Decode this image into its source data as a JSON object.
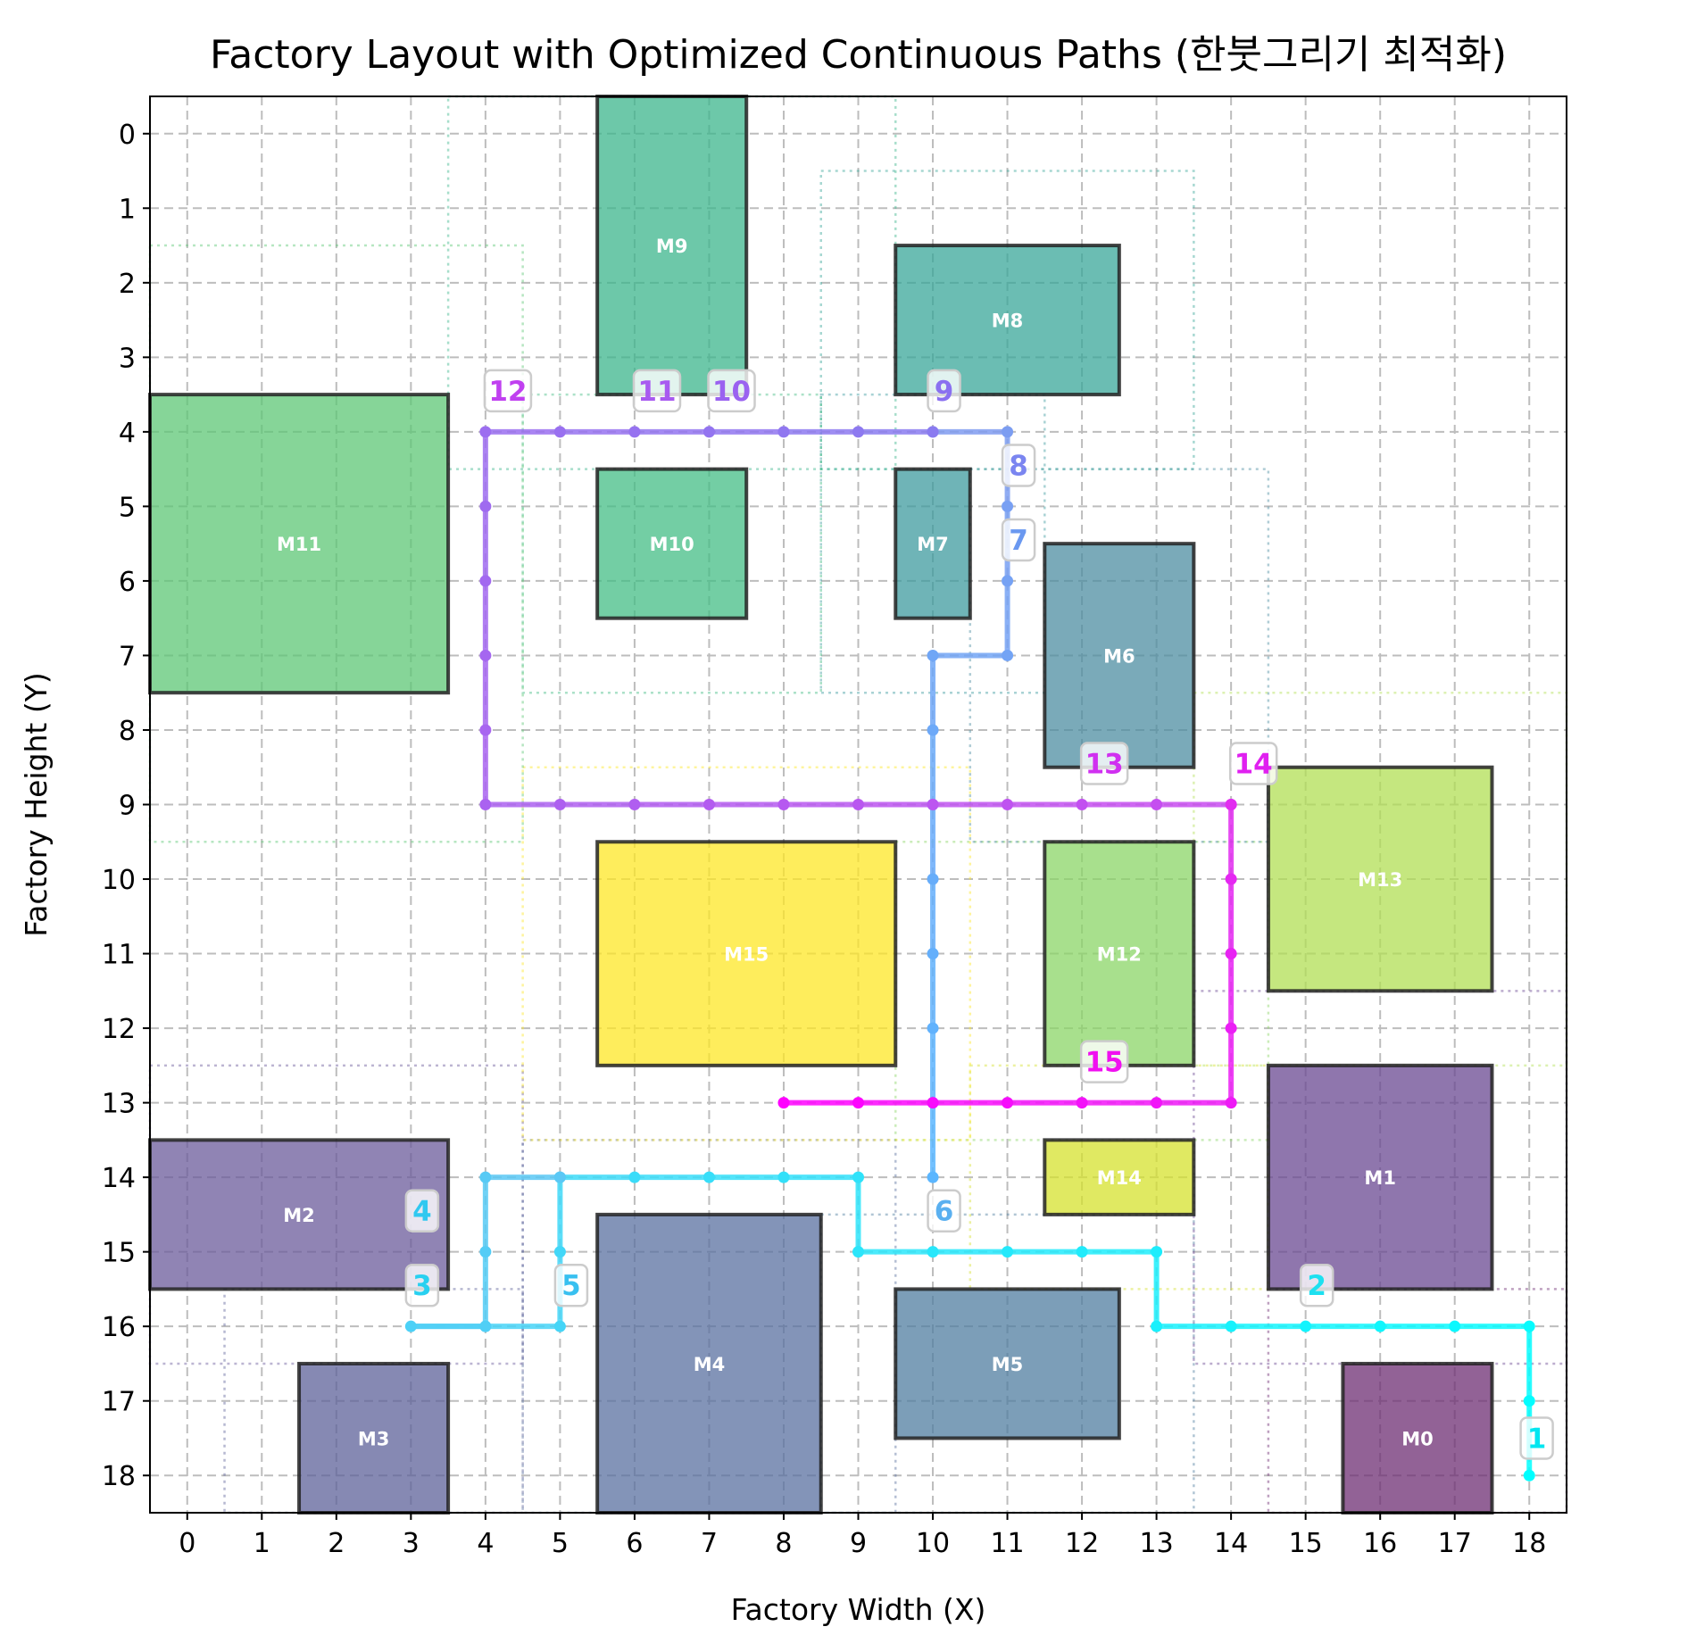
{
  "chart_data": {
    "type": "scatter",
    "title": "Factory Layout with Optimized Continuous Paths (한붓그리기 최적화)",
    "xlabel": "Factory Width (X)",
    "ylabel": "Factory Height (Y)",
    "xlim": [
      -0.5,
      18.5
    ],
    "ylim": [
      18.5,
      -0.5
    ],
    "y_inverted": true,
    "x_ticks": [
      0,
      1,
      2,
      3,
      4,
      5,
      6,
      7,
      8,
      9,
      10,
      11,
      12,
      13,
      14,
      15,
      16,
      17,
      18
    ],
    "y_ticks": [
      0,
      1,
      2,
      3,
      4,
      5,
      6,
      7,
      8,
      9,
      10,
      11,
      12,
      13,
      14,
      15,
      16,
      17,
      18
    ],
    "grid": true,
    "machines": [
      {
        "name": "M0",
        "x0": 15.5,
        "y0": 16.5,
        "x1": 17.5,
        "y1": 18.5,
        "color": "#6e2d73"
      },
      {
        "name": "M1",
        "x0": 14.5,
        "y0": 12.5,
        "x1": 17.5,
        "y1": 15.5,
        "color": "#6a4892"
      },
      {
        "name": "M2",
        "x0": -0.5,
        "y0": 13.5,
        "x1": 3.5,
        "y1": 15.5,
        "color": "#6b5b9b"
      },
      {
        "name": "M3",
        "x0": 1.5,
        "y0": 16.5,
        "x1": 3.5,
        "y1": 18.5,
        "color": "#5d6199"
      },
      {
        "name": "M4",
        "x0": 5.5,
        "y0": 14.5,
        "x1": 8.5,
        "y1": 18.5,
        "color": "#5a70a0"
      },
      {
        "name": "M5",
        "x0": 9.5,
        "y0": 15.5,
        "x1": 12.5,
        "y1": 17.5,
        "color": "#507ea0"
      },
      {
        "name": "M6",
        "x0": 11.5,
        "y0": 5.5,
        "x1": 13.5,
        "y1": 8.5,
        "color": "#4d8ea2"
      },
      {
        "name": "M7",
        "x0": 9.5,
        "y0": 4.5,
        "x1": 10.5,
        "y1": 6.5,
        "color": "#3f9b9f"
      },
      {
        "name": "M8",
        "x0": 9.5,
        "y0": 1.5,
        "x1": 12.5,
        "y1": 3.5,
        "color": "#3aa79a"
      },
      {
        "name": "M9",
        "x0": 5.5,
        "y0": -0.5,
        "x1": 7.5,
        "y1": 3.5,
        "color": "#3cb58c"
      },
      {
        "name": "M10",
        "x0": 5.5,
        "y0": 4.5,
        "x1": 7.5,
        "y1": 6.5,
        "color": "#44bd86"
      },
      {
        "name": "M11",
        "x0": -0.5,
        "y0": 3.5,
        "x1": 3.5,
        "y1": 7.5,
        "color": "#5ec775"
      },
      {
        "name": "M12",
        "x0": 11.5,
        "y0": 9.5,
        "x1": 13.5,
        "y1": 12.5,
        "color": "#8bd567"
      },
      {
        "name": "M13",
        "x0": 14.5,
        "y0": 8.5,
        "x1": 17.5,
        "y1": 11.5,
        "color": "#b1df54"
      },
      {
        "name": "M14",
        "x0": 11.5,
        "y0": 13.5,
        "x1": 13.5,
        "y1": 14.5,
        "color": "#d5e12e"
      },
      {
        "name": "M15",
        "x0": 5.5,
        "y0": 9.5,
        "x1": 9.5,
        "y1": 12.5,
        "color": "#fde725"
      }
    ],
    "dotted_boxes": [
      {
        "x0": -0.5,
        "y0": 12.5,
        "x1": 4.5,
        "y1": 16.5,
        "color": "#6b5b9b"
      },
      {
        "x0": 0.5,
        "y0": 15.5,
        "x1": 4.5,
        "y1": 18.5,
        "color": "#5d6199"
      },
      {
        "x0": 4.5,
        "y0": 13.5,
        "x1": 9.5,
        "y1": 18.5,
        "color": "#5a70a0"
      },
      {
        "x0": 8.5,
        "y0": 14.5,
        "x1": 13.5,
        "y1": 18.5,
        "color": "#507ea0"
      },
      {
        "x0": 13.5,
        "y0": 11.5,
        "x1": 18.5,
        "y1": 16.5,
        "color": "#6a4892"
      },
      {
        "x0": 14.5,
        "y0": 15.5,
        "x1": 18.5,
        "y1": 18.5,
        "color": "#6e2d73"
      },
      {
        "x0": 9.5,
        "y0": 9.5,
        "x1": 14.5,
        "y1": 13.5,
        "color": "#8bd567"
      },
      {
        "x0": 13.5,
        "y0": 7.5,
        "x1": 18.5,
        "y1": 12.5,
        "color": "#b1df54"
      },
      {
        "x0": 10.5,
        "y0": 12.5,
        "x1": 14.5,
        "y1": 15.5,
        "color": "#d5e12e"
      },
      {
        "x0": 4.5,
        "y0": 8.5,
        "x1": 10.5,
        "y1": 13.5,
        "color": "#fde725"
      },
      {
        "x0": 10.5,
        "y0": 4.5,
        "x1": 14.5,
        "y1": 9.5,
        "color": "#4d8ea2"
      },
      {
        "x0": 8.5,
        "y0": 3.5,
        "x1": 11.5,
        "y1": 7.5,
        "color": "#3f9b9f"
      },
      {
        "x0": 8.5,
        "y0": 0.5,
        "x1": 13.5,
        "y1": 4.5,
        "color": "#3aa79a"
      },
      {
        "x0": 3.5,
        "y0": -0.5,
        "x1": 9.5,
        "y1": 4.5,
        "color": "#3cb58c"
      },
      {
        "x0": 4.5,
        "y0": 3.5,
        "x1": 8.5,
        "y1": 7.5,
        "color": "#44bd86"
      },
      {
        "x0": -0.5,
        "y0": 1.5,
        "x1": 4.5,
        "y1": 9.5,
        "color": "#5ec775"
      }
    ],
    "paths": [
      {
        "start_color": "#00ffff",
        "end_color": "#5bc8f5",
        "points": [
          [
            18,
            18
          ],
          [
            18,
            17
          ],
          [
            18,
            16
          ],
          [
            17,
            16
          ],
          [
            16,
            16
          ],
          [
            15,
            16
          ],
          [
            14,
            16
          ],
          [
            13,
            16
          ],
          [
            13,
            15
          ],
          [
            12,
            15
          ],
          [
            11,
            15
          ],
          [
            10,
            15
          ],
          [
            9,
            15
          ],
          [
            9,
            14
          ],
          [
            8,
            14
          ],
          [
            7,
            14
          ],
          [
            6,
            14
          ],
          [
            5,
            14
          ],
          [
            5,
            15
          ],
          [
            5,
            16
          ],
          [
            4,
            16
          ],
          [
            3,
            16
          ],
          [
            4,
            16
          ],
          [
            4,
            15
          ],
          [
            4,
            14
          ],
          [
            5,
            14
          ]
        ]
      },
      {
        "start_color": "#5bb6ff",
        "end_color": "#7f9bf0",
        "points": [
          [
            10,
            14
          ],
          [
            10,
            13
          ],
          [
            10,
            12
          ],
          [
            10,
            11
          ],
          [
            10,
            10
          ],
          [
            10,
            9
          ],
          [
            10,
            8
          ],
          [
            10,
            7
          ],
          [
            11,
            7
          ],
          [
            11,
            6
          ],
          [
            11,
            5
          ],
          [
            11,
            4
          ],
          [
            10,
            4
          ]
        ]
      },
      {
        "start_color": "#8a7bf0",
        "end_color": "#c84cf0",
        "points": [
          [
            10,
            4
          ],
          [
            9,
            4
          ],
          [
            8,
            4
          ],
          [
            7,
            4
          ],
          [
            6,
            4
          ],
          [
            5,
            4
          ],
          [
            4,
            4
          ],
          [
            4,
            5
          ],
          [
            4,
            6
          ],
          [
            4,
            7
          ],
          [
            4,
            8
          ],
          [
            4,
            9
          ],
          [
            5,
            9
          ],
          [
            6,
            9
          ],
          [
            7,
            9
          ],
          [
            8,
            9
          ],
          [
            9,
            9
          ],
          [
            10,
            9
          ],
          [
            11,
            9
          ],
          [
            12,
            9
          ],
          [
            13,
            9
          ],
          [
            14,
            9
          ]
        ]
      },
      {
        "start_color": "#e22cf0",
        "end_color": "#ff00ff",
        "points": [
          [
            14,
            9
          ],
          [
            14,
            10
          ],
          [
            14,
            11
          ],
          [
            14,
            12
          ],
          [
            14,
            13
          ],
          [
            13,
            13
          ],
          [
            12,
            13
          ],
          [
            11,
            13
          ],
          [
            10,
            13
          ],
          [
            9,
            13
          ],
          [
            8,
            13
          ]
        ]
      }
    ],
    "step_labels": [
      {
        "text": "1",
        "x": 18.1,
        "y": 17.5,
        "color": "#00e6f0"
      },
      {
        "text": "2",
        "x": 15.15,
        "y": 15.45,
        "color": "#1ee0f0"
      },
      {
        "text": "3",
        "x": 3.15,
        "y": 15.45,
        "color": "#28d0f0"
      },
      {
        "text": "4",
        "x": 3.15,
        "y": 14.45,
        "color": "#30c8f0"
      },
      {
        "text": "5",
        "x": 5.15,
        "y": 15.45,
        "color": "#38c0f0"
      },
      {
        "text": "6",
        "x": 10.15,
        "y": 14.45,
        "color": "#5ab0f0"
      },
      {
        "text": "7",
        "x": 11.15,
        "y": 5.45,
        "color": "#6a98f0"
      },
      {
        "text": "8",
        "x": 11.15,
        "y": 4.45,
        "color": "#7a85f0"
      },
      {
        "text": "9",
        "x": 10.15,
        "y": 3.45,
        "color": "#8a70f0"
      },
      {
        "text": "10",
        "x": 7.3,
        "y": 3.45,
        "color": "#9a62f0"
      },
      {
        "text": "11",
        "x": 6.3,
        "y": 3.45,
        "color": "#a85af0"
      },
      {
        "text": "12",
        "x": 4.3,
        "y": 3.45,
        "color": "#c040f0"
      },
      {
        "text": "13",
        "x": 12.3,
        "y": 8.45,
        "color": "#d030f0"
      },
      {
        "text": "14",
        "x": 14.3,
        "y": 8.45,
        "color": "#e020f0"
      },
      {
        "text": "15",
        "x": 12.3,
        "y": 12.45,
        "color": "#f010f0"
      }
    ]
  }
}
